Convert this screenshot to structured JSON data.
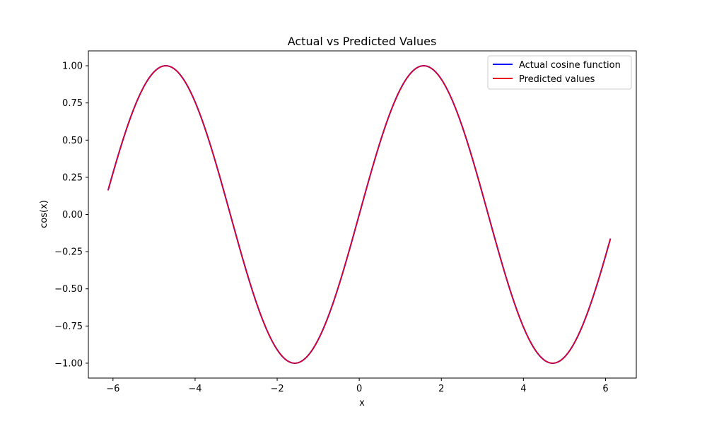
{
  "chart_data": {
    "type": "line",
    "title": "Actual vs Predicted Values",
    "xlabel": "x",
    "ylabel": "cos(x)",
    "xlim": [
      -6.6,
      6.75
    ],
    "ylim": [
      -1.1,
      1.1
    ],
    "x_ticks": [
      -6,
      -4,
      -2,
      0,
      2,
      4,
      6
    ],
    "x_tick_labels": [
      "−6",
      "−4",
      "−2",
      "0",
      "2",
      "4",
      "6"
    ],
    "y_ticks": [
      1.0,
      0.75,
      0.5,
      0.25,
      0.0,
      -0.25,
      -0.5,
      -0.75,
      -1.0
    ],
    "y_tick_labels": [
      "1.00",
      "0.75",
      "0.50",
      "0.25",
      "0.00",
      "−0.25",
      "−0.50",
      "−0.75",
      "−1.00"
    ],
    "x_range": [
      -6.12,
      6.12
    ],
    "grid": false,
    "legend_position": "top-right",
    "series": [
      {
        "name": "Actual cosine function",
        "color": "#0000ff",
        "key_points": [
          {
            "x": -6.12,
            "y": 0.16
          },
          {
            "x": -4.71,
            "y": 1.0
          },
          {
            "x": -1.57,
            "y": -1.0
          },
          {
            "x": 0.0,
            "y": 0.0
          },
          {
            "x": 1.57,
            "y": 1.0
          },
          {
            "x": 4.71,
            "y": -1.0
          },
          {
            "x": 6.12,
            "y": -0.16
          }
        ]
      },
      {
        "name": "Predicted values",
        "color": "#e8001c",
        "key_points": [
          {
            "x": -6.12,
            "y": 0.16
          },
          {
            "x": -4.71,
            "y": 1.0
          },
          {
            "x": -1.57,
            "y": -1.0
          },
          {
            "x": 0.0,
            "y": 0.0
          },
          {
            "x": 1.57,
            "y": 1.0
          },
          {
            "x": 4.71,
            "y": -1.0
          },
          {
            "x": 6.12,
            "y": -0.16
          }
        ]
      }
    ]
  }
}
